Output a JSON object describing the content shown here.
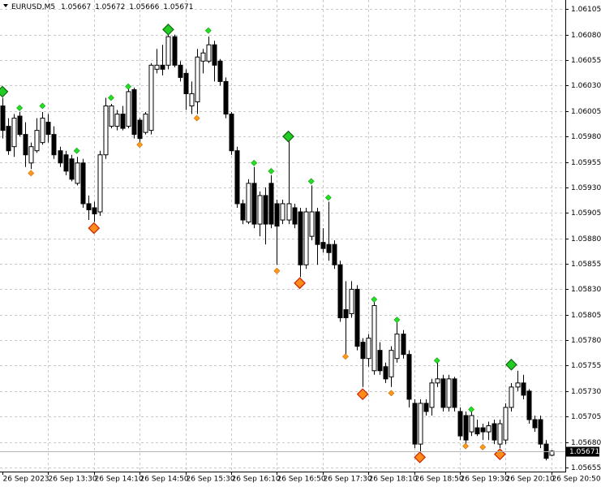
{
  "chart_data": {
    "type": "candlestick",
    "symbol": "EURUSD,M5",
    "categories": [
      "26 Sep 2023",
      null,
      null,
      null,
      null,
      null,
      null,
      null,
      "26 Sep 13:30",
      null,
      null,
      null,
      null,
      null,
      null,
      null,
      "26 Sep 14:10",
      null,
      null,
      null,
      null,
      null,
      null,
      null,
      "26 Sep 14:50",
      null,
      null,
      null,
      null,
      null,
      null,
      null,
      "26 Sep 15:30",
      null,
      null,
      null,
      null,
      null,
      null,
      null,
      "26 Sep 16:10",
      null,
      null,
      null,
      null,
      null,
      null,
      null,
      "26 Sep 16:50",
      null,
      null,
      null,
      null,
      null,
      null,
      null,
      "26 Sep 17:30",
      null,
      null,
      null,
      null,
      null,
      null,
      null,
      "26 Sep 18:10",
      null,
      null,
      null,
      null,
      null,
      null,
      null,
      "26 Sep 18:50",
      null,
      null,
      null,
      null,
      null,
      null,
      null,
      "26 Sep 19:30",
      null,
      null,
      null,
      null,
      null,
      null,
      null,
      "26 Sep 20:10",
      null,
      null,
      null,
      null,
      null,
      null,
      null,
      "26 Sep 20:50"
    ],
    "open": [
      1.0601,
      1.0599,
      1.0597,
      1.06,
      1.05982,
      1.05954,
      1.05966,
      1.05974,
      1.05994,
      1.05982,
      1.05966,
      1.05962,
      1.05958,
      1.05934,
      1.05954,
      1.05914,
      1.0591,
      1.05906,
      1.05962,
      1.0599,
      1.0599,
      1.06002,
      1.0599,
      1.06026,
      1.05996,
      1.05984,
      1.05986,
      1.06046,
      1.0605,
      1.0605,
      1.06078,
      1.0605,
      1.06042,
      1.0601,
      1.06014,
      1.06054,
      1.06054,
      1.0607,
      1.06054,
      1.06034,
      1.06002,
      1.05966,
      1.05914,
      1.05896,
      1.05934,
      1.05894,
      1.05922,
      1.05934,
      1.05914,
      1.05898,
      1.05898,
      1.0591,
      1.05906,
      1.05854,
      1.05882,
      1.05906,
      1.05876,
      1.05874,
      1.05874,
      1.05854,
      1.0581,
      1.05806,
      1.0583,
      1.05778,
      1.05762,
      1.0575,
      1.0577,
      1.05754,
      1.05744,
      1.05762,
      1.05786,
      1.05766,
      1.05718,
      1.05678,
      1.05718,
      1.05714,
      1.05738,
      1.05742,
      1.05714,
      1.05742,
      1.0571,
      1.05706,
      1.0569,
      1.05694,
      1.05694,
      1.0569,
      1.05698,
      1.05678,
      1.05682,
      1.05714,
      1.05734,
      1.05738,
      1.0573,
      1.05702,
      1.05702,
      1.05678,
      1.05667
    ],
    "high": [
      1.06018,
      1.05998,
      1.06002,
      1.06004,
      1.05994,
      1.05974,
      1.05998,
      1.06004,
      1.06002,
      1.0599,
      1.0597,
      1.05966,
      1.05962,
      1.0596,
      1.05958,
      1.05922,
      1.05916,
      1.05966,
      1.06018,
      1.06012,
      1.06006,
      1.0601,
      1.06028,
      1.06028,
      1.05998,
      1.06004,
      1.06052,
      1.06066,
      1.0607,
      1.06084,
      1.0608,
      1.06054,
      1.06046,
      1.06034,
      1.06066,
      1.06066,
      1.06078,
      1.06074,
      1.06056,
      1.06038,
      1.06004,
      1.0597,
      1.05918,
      1.05938,
      1.0595,
      1.05926,
      1.0593,
      1.05942,
      1.05918,
      1.05918,
      1.0598,
      1.05914,
      1.0591,
      1.0591,
      1.05932,
      1.0591,
      1.0589,
      1.05916,
      1.05878,
      1.05858,
      1.05838,
      1.05838,
      1.05834,
      1.05782,
      1.05786,
      1.05818,
      1.05778,
      1.05758,
      1.05774,
      1.05798,
      1.0579,
      1.0577,
      1.05722,
      1.05722,
      1.05722,
      1.05742,
      1.05758,
      1.05746,
      1.05746,
      1.05744,
      1.05714,
      1.0571,
      1.0571,
      1.05702,
      1.05698,
      1.057,
      1.05702,
      1.05702,
      1.05718,
      1.05738,
      1.0575,
      1.05746,
      1.05732,
      1.05706,
      1.05706,
      1.05682,
      1.05672
    ],
    "low": [
      1.05978,
      1.05962,
      1.0596,
      1.0598,
      1.0595,
      1.05948,
      1.05964,
      1.05972,
      1.05974,
      1.05958,
      1.0595,
      1.05942,
      1.05936,
      1.05932,
      1.0591,
      1.05898,
      1.05896,
      1.05902,
      1.05958,
      1.05988,
      1.05986,
      1.05986,
      1.05988,
      1.05978,
      1.05974,
      1.05982,
      1.05982,
      1.06042,
      1.0604,
      1.06046,
      1.06048,
      1.06034,
      1.06006,
      1.06002,
      1.06002,
      1.06042,
      1.06052,
      1.06034,
      1.0603,
      1.05998,
      1.05962,
      1.0591,
      1.05894,
      1.05894,
      1.0589,
      1.05882,
      1.05874,
      1.0589,
      1.05854,
      1.05894,
      1.05894,
      1.0589,
      1.05842,
      1.0585,
      1.05878,
      1.05854,
      1.05866,
      1.05858,
      1.0585,
      1.05798,
      1.05766,
      1.05802,
      1.0577,
      1.05734,
      1.05754,
      1.05746,
      1.05746,
      1.05738,
      1.05734,
      1.05758,
      1.05762,
      1.05714,
      1.05674,
      1.0567,
      1.05706,
      1.05706,
      1.05734,
      1.0571,
      1.0571,
      1.0571,
      1.05682,
      1.05678,
      1.05686,
      1.05686,
      1.05682,
      1.05682,
      1.05678,
      1.05674,
      1.05678,
      1.0571,
      1.0573,
      1.05722,
      1.05698,
      1.0569,
      1.05674,
      1.05662,
      1.05666
    ],
    "close": [
      1.05986,
      1.05966,
      1.05998,
      1.05982,
      1.05962,
      1.0597,
      1.05986,
      1.05998,
      1.05982,
      1.05962,
      1.05954,
      1.05946,
      1.05938,
      1.05954,
      1.05914,
      1.05908,
      1.05904,
      1.05962,
      1.0601,
      1.0601,
      1.06002,
      1.05988,
      1.06024,
      1.05982,
      1.05978,
      1.06002,
      1.0605,
      1.0605,
      1.06046,
      1.06078,
      1.0605,
      1.06038,
      1.06022,
      1.06022,
      1.06058,
      1.06062,
      1.0607,
      1.0605,
      1.06034,
      1.06002,
      1.05966,
      1.05914,
      1.05898,
      1.05934,
      1.05894,
      1.05922,
      1.05894,
      1.05894,
      1.05892,
      1.05914,
      1.05914,
      1.05894,
      1.05854,
      1.05906,
      1.05906,
      1.05874,
      1.0587,
      1.05866,
      1.05854,
      1.05802,
      1.05802,
      1.0583,
      1.05774,
      1.05762,
      1.05782,
      1.05814,
      1.0575,
      1.05742,
      1.0577,
      1.05786,
      1.05766,
      1.05722,
      1.05678,
      1.05718,
      1.0571,
      1.05738,
      1.05742,
      1.05714,
      1.05742,
      1.05714,
      1.05686,
      1.05682,
      1.05706,
      1.05688,
      1.0569,
      1.05696,
      1.05682,
      1.05698,
      1.05714,
      1.05734,
      1.05738,
      1.05726,
      1.05702,
      1.05694,
      1.05678,
      1.05664,
      1.05671
    ],
    "up_color": "#ffffff",
    "down_color": "#000000",
    "signals": [
      {
        "color": "#22e022",
        "edge": "#119911",
        "large": false,
        "indices": [
          3,
          7,
          13,
          19,
          22,
          36,
          44,
          47,
          54,
          57,
          65,
          69,
          76,
          82
        ],
        "values": [
          1.06008,
          1.0601,
          1.05966,
          1.06018,
          1.06029,
          1.06084,
          1.05954,
          1.05946,
          1.05936,
          1.0592,
          1.0582,
          1.058,
          1.0576,
          1.05712
        ]
      },
      {
        "color": "#22cc22",
        "edge": "#116611",
        "large": true,
        "indices": [
          0,
          29,
          50,
          89
        ],
        "values": [
          1.06024,
          1.06085,
          1.0598,
          1.05756
        ]
      },
      {
        "color": "#ff9a1a",
        "edge": "#cc6600",
        "large": false,
        "indices": [
          5,
          24,
          34,
          48,
          60,
          68,
          81,
          84
        ],
        "values": [
          1.05944,
          1.05972,
          1.05998,
          1.05848,
          1.05764,
          1.05728,
          1.05676,
          1.05675
        ]
      },
      {
        "color": "#ff8c1a",
        "edge": "#cc2200",
        "large": true,
        "indices": [
          16,
          52,
          63,
          73,
          87
        ],
        "values": [
          1.0589,
          1.05836,
          1.05727,
          1.05665,
          1.05668
        ]
      }
    ],
    "ylim": [
      1.05651,
      1.06114
    ],
    "yticks": [
      1.06105,
      {
        "value": 1.0608,
        "label": "1.06080"
      },
      1.06055,
      {
        "value": 1.0603,
        "label": "1.06030"
      },
      1.06005,
      {
        "value": 1.0598,
        "label": "1.05980"
      },
      1.05955,
      {
        "value": 1.0593,
        "label": "1.05930"
      },
      1.05905,
      {
        "value": 1.0588,
        "label": "1.05880"
      },
      1.05855,
      {
        "value": 1.0583,
        "label": "1.05830"
      },
      1.05805,
      {
        "value": 1.0578,
        "label": "1.05780"
      },
      1.05755,
      {
        "value": 1.0573,
        "label": "1.05730"
      },
      1.05705,
      {
        "value": 1.0568,
        "label": "1.05680"
      },
      1.05655
    ],
    "grid": true
  }
}
